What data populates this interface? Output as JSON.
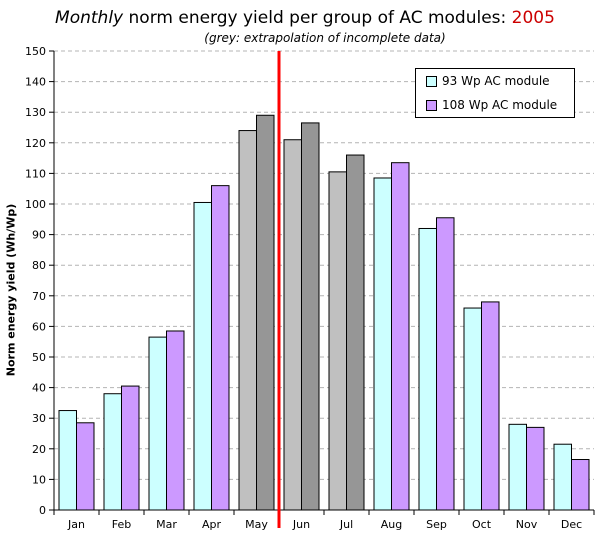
{
  "title": {
    "italic_part": "Monthly",
    "main_part": " norm energy yield per group of AC modules: ",
    "year": "2005"
  },
  "subtitle": "(grey: extrapolation of incomplete data)",
  "colors": {
    "series1": "#ccffff",
    "series2": "#cc99ff",
    "extrapolated1": "#c0c0c0",
    "extrapolated2": "#969696",
    "marker_line": "#ff0000",
    "year_text": "#cc0000"
  },
  "chart_data": {
    "type": "bar",
    "categories": [
      "Jan",
      "Feb",
      "Mar",
      "Apr",
      "May",
      "Jun",
      "Jul",
      "Aug",
      "Sep",
      "Oct",
      "Nov",
      "Dec"
    ],
    "series": [
      {
        "name": "93 Wp AC module",
        "values": [
          32.5,
          38,
          56.5,
          100.5,
          124,
          121,
          110.5,
          108.5,
          92,
          66,
          28,
          21.5
        ]
      },
      {
        "name": "108 Wp AC module",
        "values": [
          28.5,
          40.5,
          58.5,
          106,
          129,
          126.5,
          116,
          113.5,
          95.5,
          68,
          27,
          16.5
        ]
      }
    ],
    "extrapolated_categories": [
      "May",
      "Jun",
      "Jul"
    ],
    "marker_between": [
      "May",
      "Jun"
    ],
    "ylabel": "Norm energy yield (Wh/Wp)",
    "ylim": [
      0,
      150
    ],
    "ytick_step": 10,
    "grid": true,
    "legend_position": "top-right"
  }
}
